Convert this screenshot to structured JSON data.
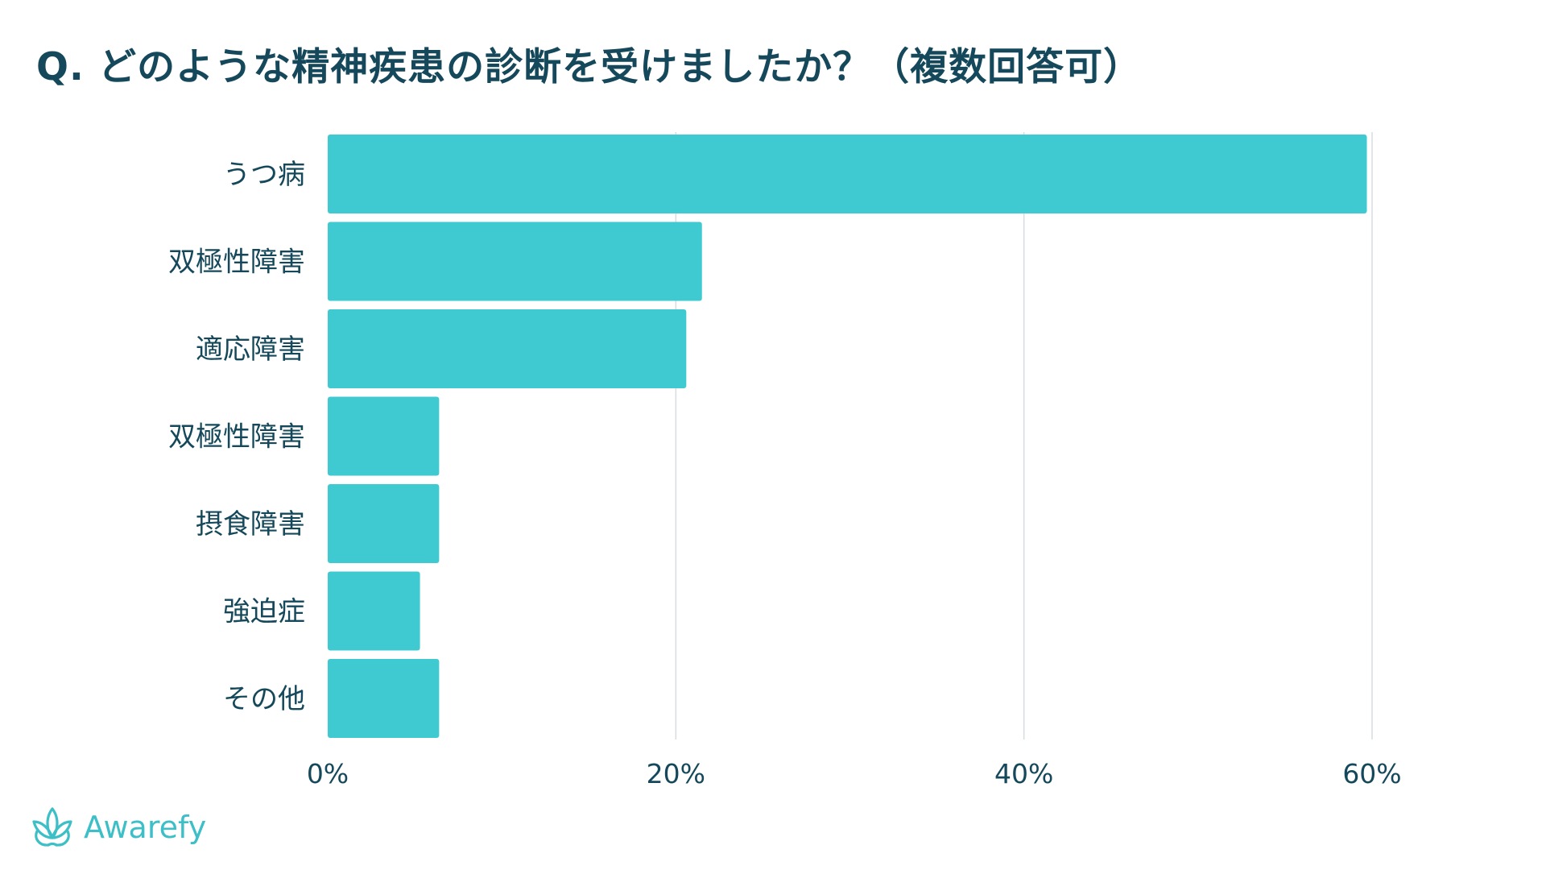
{
  "title": "Q. どのような精神疾患の診断を受けましたか？（複数回答可）",
  "brand": {
    "name": "Awarefy",
    "icon": "lotus-icon",
    "color": "#3cbfc6"
  },
  "colors": {
    "bar": "#3fc9d0",
    "text": "#14485a",
    "grid": "#d5dde0"
  },
  "chart_data": {
    "type": "bar",
    "orientation": "horizontal",
    "title": "Q. どのような精神疾患の診断を受けましたか？（複数回答可）",
    "categories": [
      "うつ病",
      "双極性障害",
      "適応障害",
      "双極性障害",
      "摂食障害",
      "強迫症",
      "その他"
    ],
    "values": [
      59.7,
      21.5,
      20.6,
      6.4,
      6.4,
      5.3,
      6.4
    ],
    "unit": "%",
    "xlim": [
      0,
      60
    ],
    "xticks": [
      0,
      20,
      40,
      60
    ],
    "xtick_labels": [
      "0%",
      "20%",
      "40%",
      "60%"
    ],
    "grid": true,
    "legend": "none"
  }
}
